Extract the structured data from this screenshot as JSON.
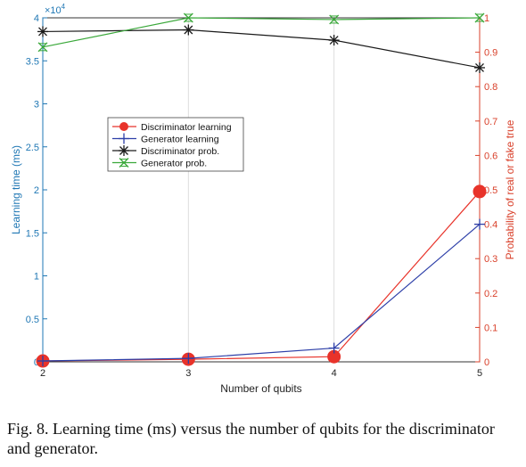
{
  "chart_data": {
    "type": "line",
    "x": [
      2,
      3,
      4,
      5
    ],
    "xlabel": "Number of qubits",
    "ylabel_left": "Learning time (ms)",
    "ylabel_right": "Probability of real or fake true",
    "ylim_left": [
      0,
      40000
    ],
    "ylim_right": [
      0,
      1
    ],
    "xlim": [
      2,
      5
    ],
    "left_multiplier": "×10",
    "left_exponent": "4",
    "x_ticks": [
      "2",
      "3",
      "4",
      "5"
    ],
    "left_ticks": [
      "0",
      "0.5",
      "1",
      "1.5",
      "2",
      "2.5",
      "3",
      "3.5",
      "4"
    ],
    "right_ticks": [
      "0",
      "0.1",
      "0.2",
      "0.3",
      "0.4",
      "0.5",
      "0.6",
      "0.7",
      "0.8",
      "0.9",
      "1"
    ],
    "grid": "vertical",
    "legend_position": "center-left",
    "series": [
      {
        "name": "Discriminator learning",
        "axis": "left",
        "color": "#e8332a",
        "marker": "circle",
        "values": [
          100,
          300,
          600,
          19800
        ]
      },
      {
        "name": "Generator learning",
        "axis": "left",
        "color": "#2d3fa8",
        "marker": "plus",
        "values": [
          100,
          400,
          1600,
          16000
        ]
      },
      {
        "name": "Discriminator prob.",
        "axis": "right",
        "color": "#1a1a1a",
        "marker": "asterisk",
        "values": [
          0.96,
          0.965,
          0.935,
          0.855
        ]
      },
      {
        "name": "Generator prob.",
        "axis": "right",
        "color": "#3aa83a",
        "marker": "x",
        "values": [
          0.915,
          1.0,
          0.995,
          1.0
        ]
      }
    ]
  },
  "caption": "Fig. 8.  Learning time (ms) versus the number of qubits for the discriminator and generator.",
  "colors": {
    "left_axis": "#1f77b4",
    "right_axis": "#d9412b",
    "grid": "#dddddd",
    "axis": "#333333"
  }
}
